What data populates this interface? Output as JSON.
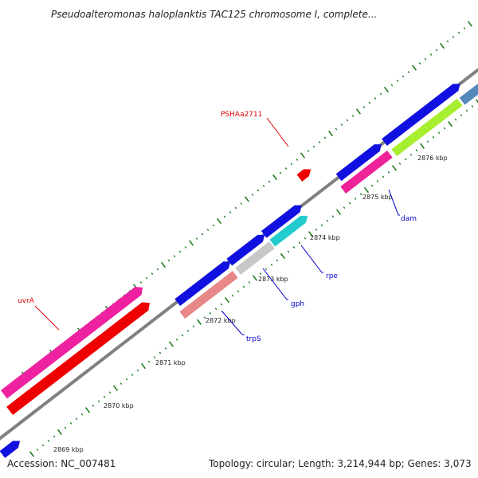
{
  "title": "Pseudoalteromonas haloplanktis TAC125 chromosome I, complete...",
  "footer": {
    "accession": "Accession: NC_007481",
    "summary": "Topology: circular; Length: 3,214,944 bp; Genes: 3,073"
  },
  "ticks": [
    "2869 kbp",
    "2870 kbp",
    "2871 kbp",
    "2872 kbp",
    "2873 kbp",
    "2874 kbp",
    "2875 kbp",
    "2876 kbp"
  ],
  "gene_labels": [
    {
      "text": "PSHAa2711",
      "color": "#e00000"
    },
    {
      "text": "uvrA",
      "color": "#e00000"
    },
    {
      "text": "trpS",
      "color": "#0000cc"
    },
    {
      "text": "gph",
      "color": "#0000cc"
    },
    {
      "text": "rpe",
      "color": "#0000cc"
    },
    {
      "text": "dam",
      "color": "#0000cc"
    }
  ],
  "colors": {
    "backbone": "#808080",
    "tick": "#1a7a1a",
    "cds_blue": "#1010e0",
    "uvrA_pink": "#ee22a0",
    "uvrA_red": "#ee0000",
    "trpS": "#e88888",
    "gph": "#c8c8c8",
    "rpe": "#22cccc",
    "dam": "#ee2299",
    "yellowgreen": "#a8ee30",
    "steelblue": "#5588bb"
  }
}
